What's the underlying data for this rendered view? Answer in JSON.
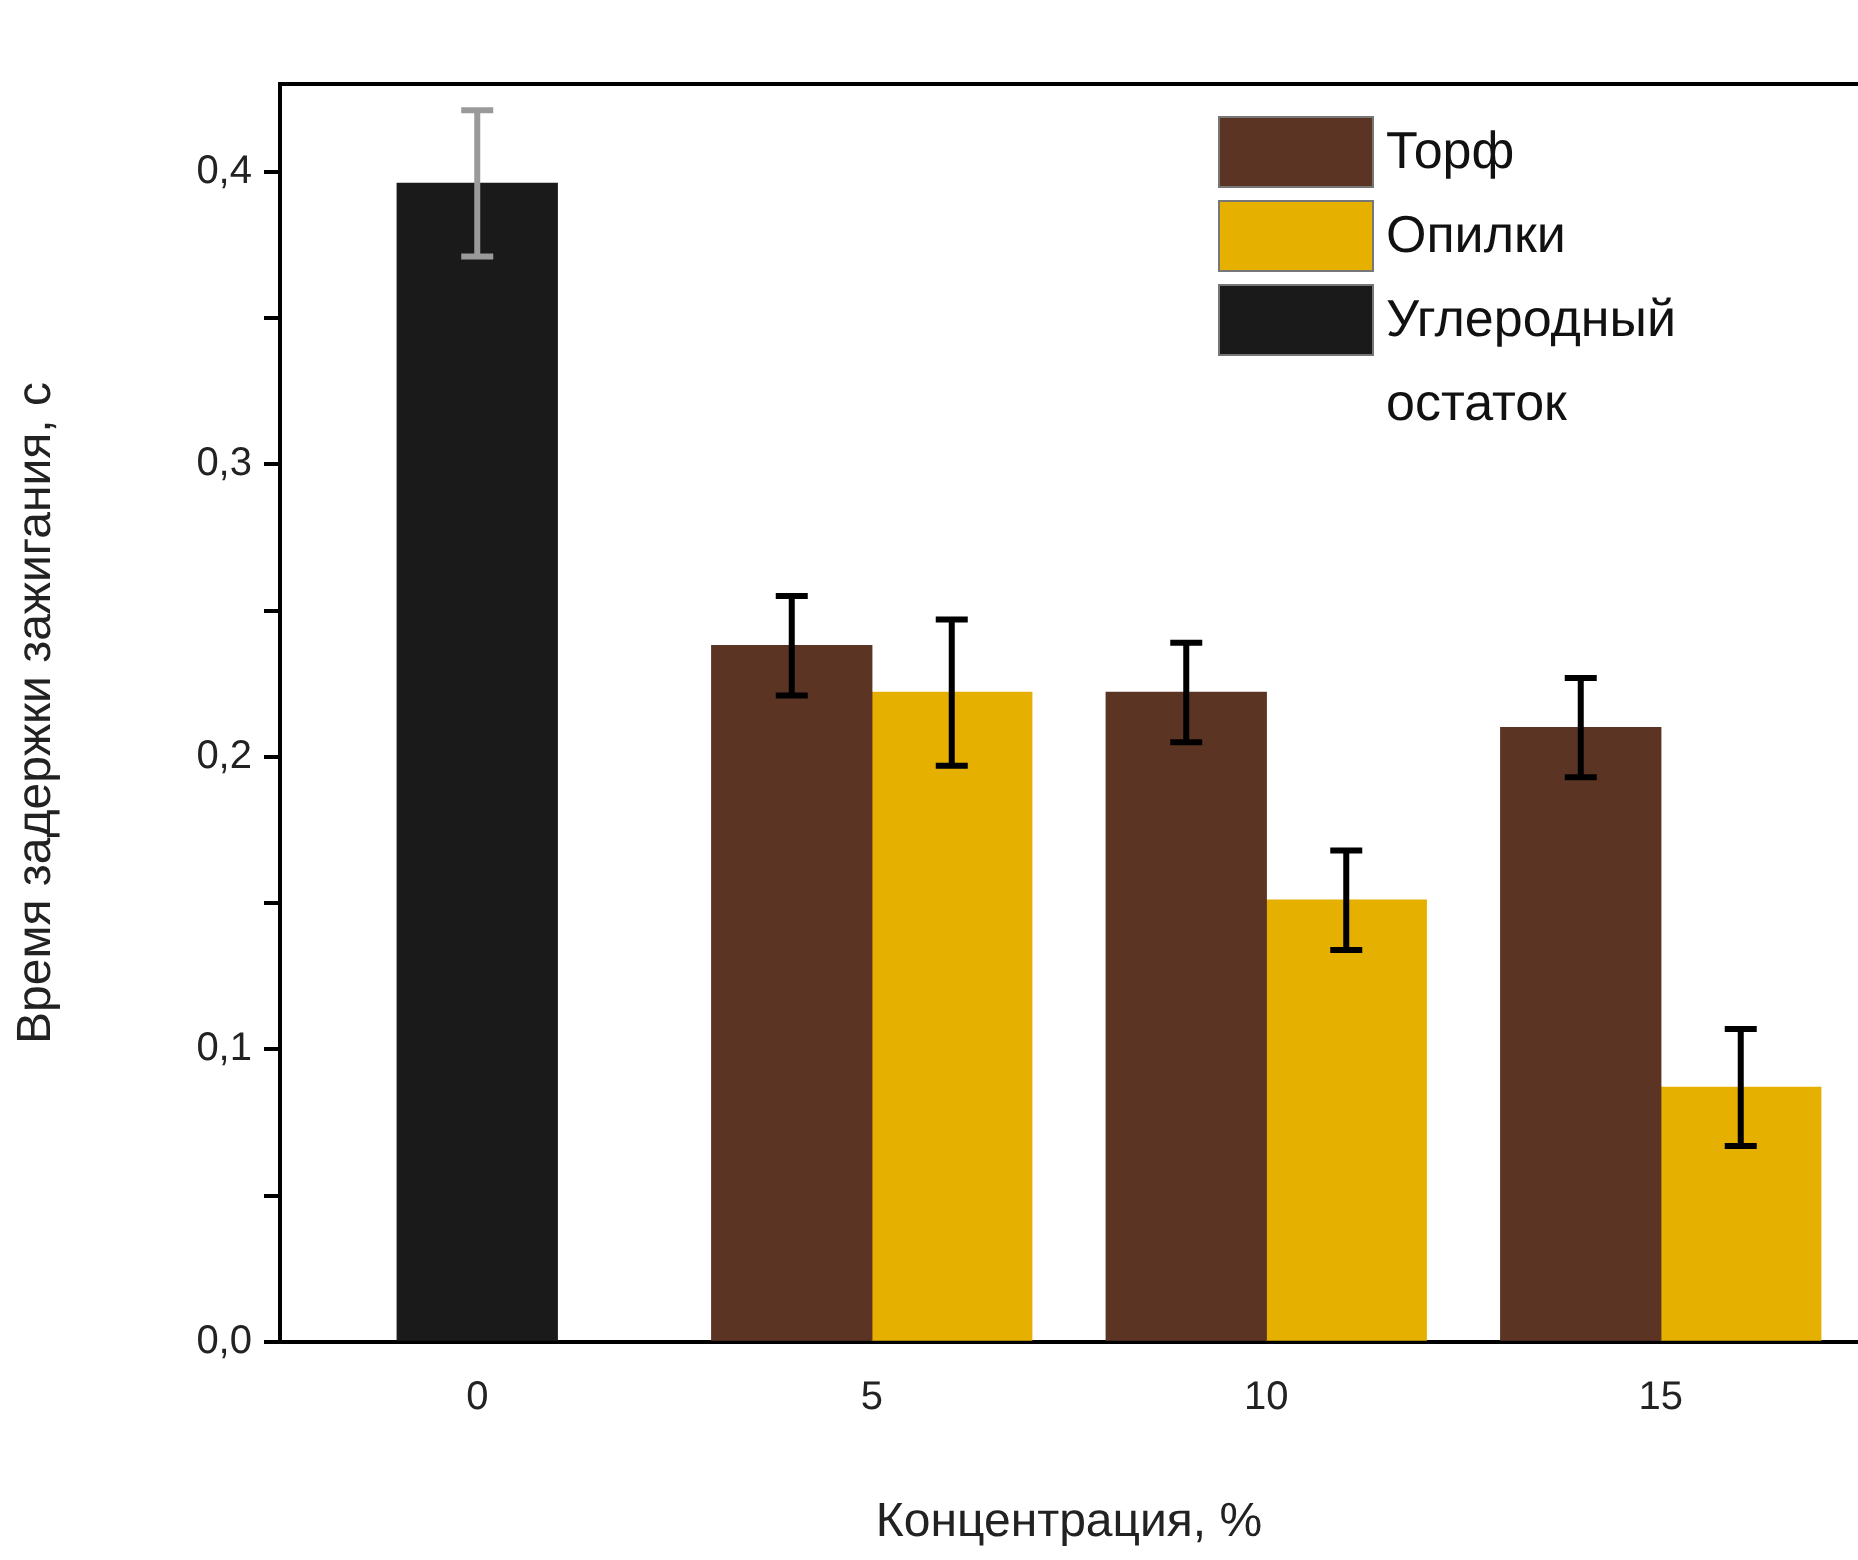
{
  "chart_data": {
    "type": "bar",
    "xlabel": "Концентрация, %",
    "ylabel": "Время задержки зажигания, с",
    "categories": [
      "0",
      "5",
      "10",
      "15"
    ],
    "series": [
      {
        "name": "Торф",
        "color": "#5c3424",
        "values": [
          null,
          0.238,
          0.222,
          0.21
        ],
        "errors": [
          null,
          0.017,
          0.017,
          0.017
        ]
      },
      {
        "name": "Опилки",
        "color": "#e6b000",
        "values": [
          null,
          0.222,
          0.151,
          0.087
        ],
        "errors": [
          null,
          0.025,
          0.017,
          0.02
        ]
      },
      {
        "name": "Углеродный остаток",
        "color": "#1a1a1a",
        "values": [
          0.396,
          null,
          null,
          null
        ],
        "errors": [
          0.025,
          null,
          null,
          null
        ]
      }
    ],
    "ylim": [
      0,
      0.43
    ],
    "yticks": [
      {
        "value": 0,
        "label": "0,0"
      },
      {
        "value": 0.05,
        "label": null
      },
      {
        "value": 0.1,
        "label": "0,1"
      },
      {
        "value": 0.15,
        "label": null
      },
      {
        "value": 0.2,
        "label": "0,2"
      },
      {
        "value": 0.25,
        "label": null
      },
      {
        "value": 0.3,
        "label": "0,3"
      },
      {
        "value": 0.35,
        "label": null
      },
      {
        "value": 0.4,
        "label": "0,4"
      }
    ],
    "grid": false,
    "legend": "top right"
  }
}
